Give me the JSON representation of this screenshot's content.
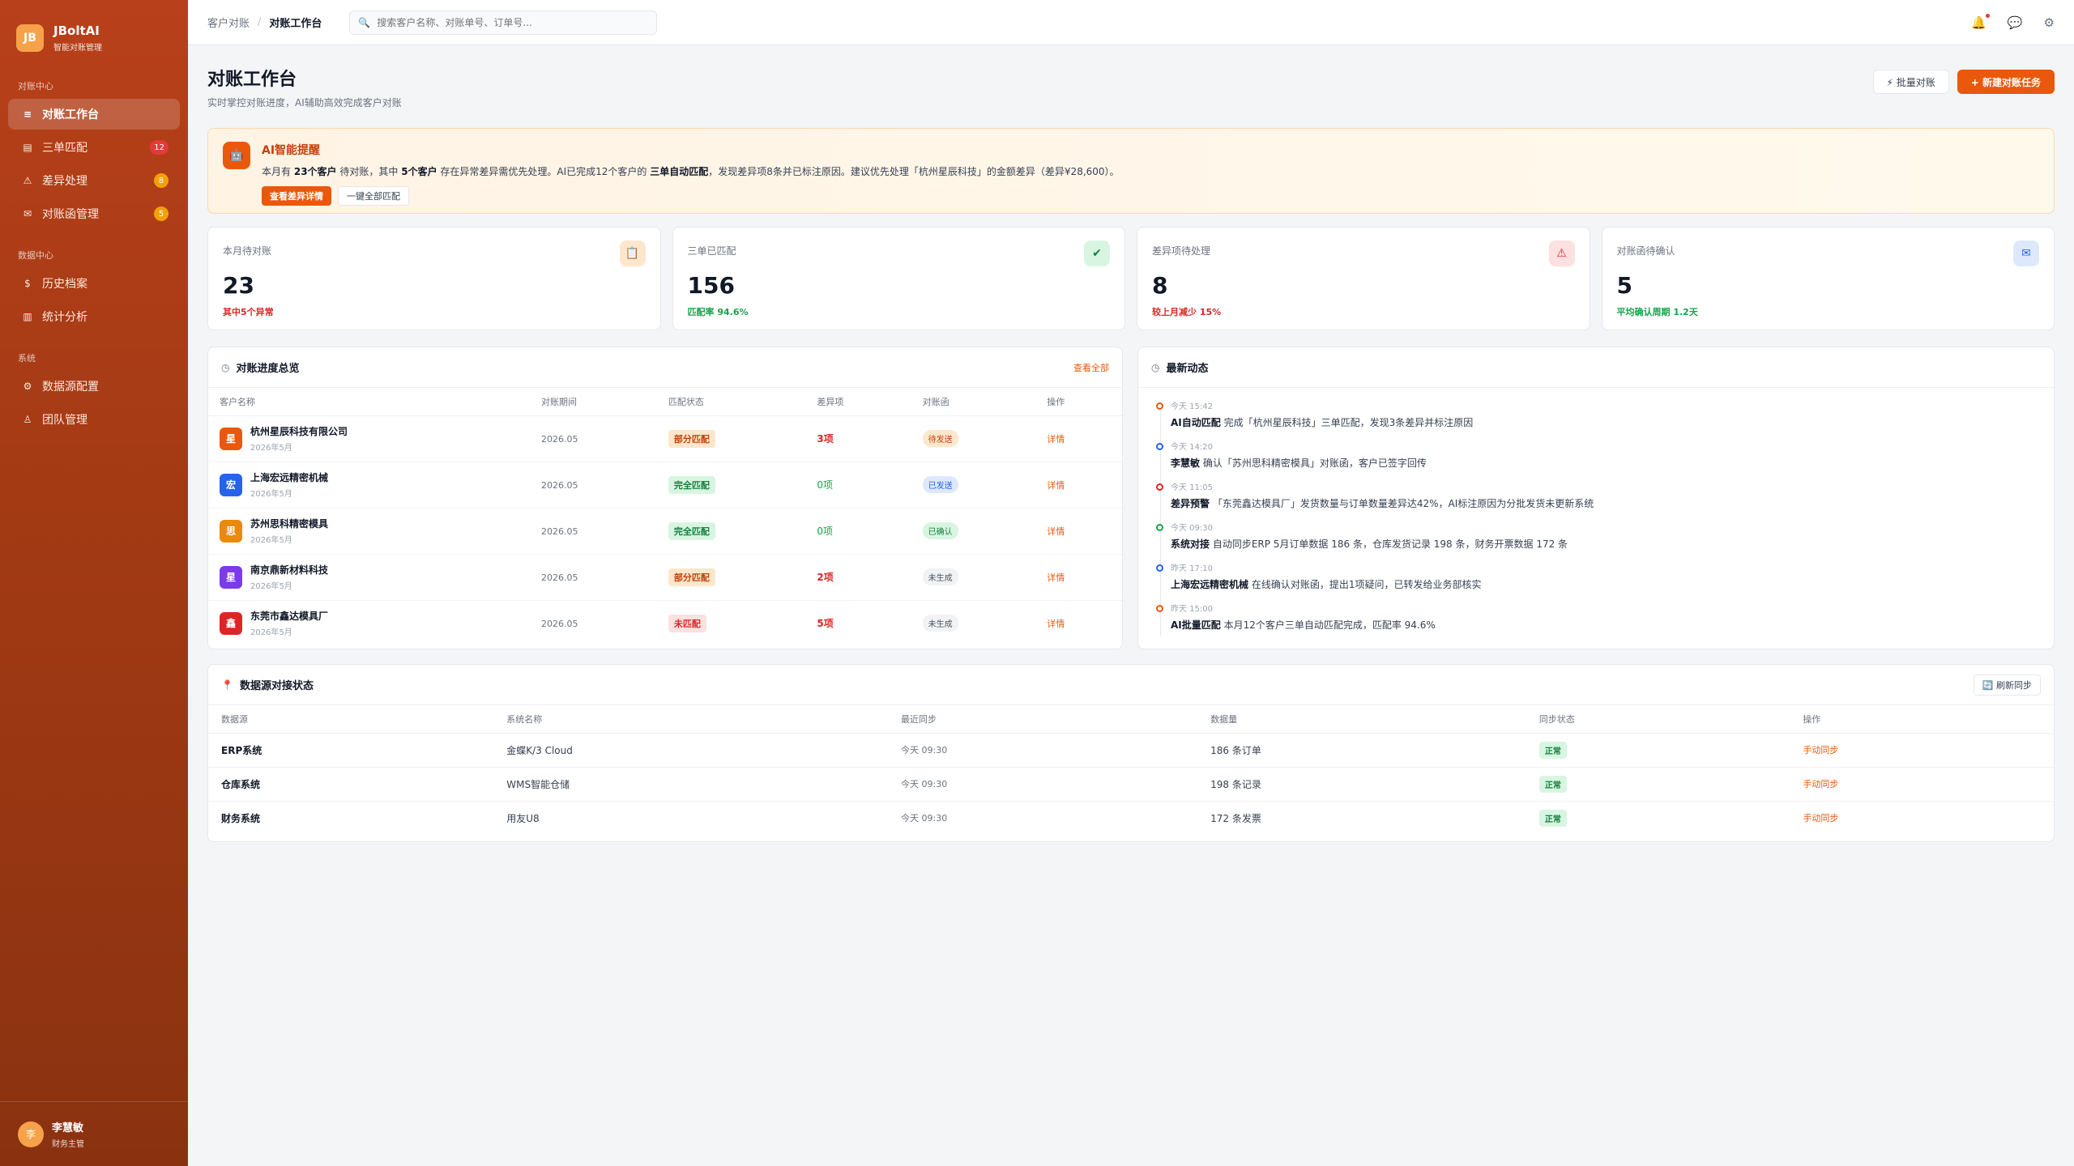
{
  "brand": {
    "logo": "JB",
    "name": "JBoltAI",
    "sub": "智能对账管理"
  },
  "sidebar": {
    "sections": [
      {
        "title": "对账中心",
        "items": [
          {
            "label": "对账工作台",
            "icon": "≡",
            "badge": ""
          },
          {
            "label": "三单匹配",
            "icon": "▤",
            "badge": "12"
          },
          {
            "label": "差异处理",
            "icon": "⚠",
            "badge": "8"
          },
          {
            "label": "对账函管理",
            "icon": "✉",
            "badge": "5"
          }
        ]
      },
      {
        "title": "数据中心",
        "items": [
          {
            "label": "历史档案",
            "icon": "$"
          },
          {
            "label": "统计分析",
            "icon": "▥"
          }
        ]
      },
      {
        "title": "系统",
        "items": [
          {
            "label": "数据源配置",
            "icon": "⚙"
          },
          {
            "label": "团队管理",
            "icon": "♙"
          }
        ]
      }
    ]
  },
  "user": {
    "avatar": "李",
    "name": "李慧敏",
    "role": "财务主管"
  },
  "topbar": {
    "crumb_parent": "客户对账",
    "crumb_sep": "/",
    "crumb_current": "对账工作台",
    "search_placeholder": "搜索客户名称、对账单号、订单号..."
  },
  "page": {
    "title": "对账工作台",
    "subtitle": "实时掌控对账进度，AI辅助高效完成客户对账",
    "btn_batch": "⚡ 批量对账",
    "btn_new": "+ 新建对账任务"
  },
  "ai": {
    "icon": "🤖",
    "title": "AI智能提醒",
    "t1": "本月有",
    "t2": "23个客户",
    "t3": "待对账，其中",
    "t4": "5个客户",
    "t5": "存在异常差异需优先处理。AI已完成12个客户的",
    "t6": "三单自动匹配",
    "t7": "，发现差异项8条并已标注原因。建议优先处理「杭州星辰科技」的金额差异（差异¥28,600）。",
    "btn_view": "查看差异详情",
    "btn_match": "一键全部匹配"
  },
  "stats": [
    {
      "label": "本月待对账",
      "value": "23",
      "note": "其中5个异常",
      "tone": "red",
      "icon": "📋"
    },
    {
      "label": "三单已匹配",
      "value": "156",
      "note": "匹配率 94.6%",
      "tone": "green",
      "icon": "✔"
    },
    {
      "label": "差异项待处理",
      "value": "8",
      "note": "较上月减少 15%",
      "tone": "red",
      "icon": "⚠"
    },
    {
      "label": "对账函待确认",
      "value": "5",
      "note": "平均确认周期 1.2天",
      "tone": "green",
      "icon": "✉"
    }
  ],
  "progress": {
    "title": "对账进度总览",
    "link": "查看全部",
    "headers": [
      "客户名称",
      "对账期间",
      "匹配状态",
      "差异项",
      "对账函",
      "操作"
    ],
    "rows": [
      {
        "av": "星",
        "color": "#ea580c",
        "name": "杭州星辰科技有限公司",
        "sub": "2026年5月",
        "period": "2026.05",
        "status": "部分匹配",
        "st": "partial",
        "diff": "3项",
        "dt": "red",
        "letter": "待发送",
        "lt": "pend",
        "op": "详情"
      },
      {
        "av": "宏",
        "color": "#2563eb",
        "name": "上海宏远精密机械",
        "sub": "2026年5月",
        "period": "2026.05",
        "status": "完全匹配",
        "st": "full",
        "diff": "0项",
        "dt": "green",
        "letter": "已发送",
        "lt": "sent",
        "op": "详情"
      },
      {
        "av": "思",
        "color": "#ea8a0c",
        "name": "苏州思科精密模具",
        "sub": "2026年5月",
        "period": "2026.05",
        "status": "完全匹配",
        "st": "full",
        "diff": "0项",
        "dt": "green",
        "letter": "已确认",
        "lt": "ok",
        "op": "详情"
      },
      {
        "av": "星",
        "color": "#7c3aed",
        "name": "南京鼎新材料科技",
        "sub": "2026年5月",
        "period": "2026.05",
        "status": "部分匹配",
        "st": "partial",
        "diff": "2项",
        "dt": "red",
        "letter": "未生成",
        "lt": "none",
        "op": "详情"
      },
      {
        "av": "鑫",
        "color": "#dc2626",
        "name": "东莞市鑫达模具厂",
        "sub": "2026年5月",
        "period": "2026.05",
        "status": "未匹配",
        "st": "none",
        "diff": "5项",
        "dt": "red",
        "letter": "未生成",
        "lt": "none",
        "op": "详情"
      }
    ]
  },
  "activity": {
    "title": "最新动态",
    "items": [
      {
        "time": "今天 15:42",
        "who": "AI自动匹配",
        "text": " 完成「杭州星辰科技」三单匹配，发现3条差异并标注原因",
        "color": "#ea580c"
      },
      {
        "time": "今天 14:20",
        "who": "李慧敏",
        "text": " 确认「苏州思科精密模具」对账函，客户已签字回传",
        "color": "#2563eb"
      },
      {
        "time": "今天 11:05",
        "who": "差异预警",
        "text": " 「东莞鑫达模具厂」发货数量与订单数量差异达42%，AI标注原因为分批发货未更新系统",
        "color": "#dc2626"
      },
      {
        "time": "今天 09:30",
        "who": "系统对接",
        "text": " 自动同步ERP 5月订单数据 186 条，仓库发货记录 198 条，财务开票数据 172 条",
        "color": "#16a34a"
      },
      {
        "time": "昨天 17:10",
        "who": "上海宏远精密机械",
        "text": " 在线确认对账函，提出1项疑问，已转发给业务部核实",
        "color": "#2563eb"
      },
      {
        "time": "昨天 15:00",
        "who": "AI批量匹配",
        "text": " 本月12个客户三单自动匹配完成，匹配率 94.6%",
        "color": "#ea580c"
      }
    ]
  },
  "datasource": {
    "title": "数据源对接状态",
    "refresh": "🔄 刷新同步",
    "headers": [
      "数据源",
      "系统名称",
      "最近同步",
      "数据量",
      "同步状态",
      "操作"
    ],
    "rows": [
      {
        "src": "ERP系统",
        "sys": "金蝶K/3 Cloud",
        "time": "今天 09:30",
        "count": "186 条订单",
        "status": "正常",
        "op": "手动同步"
      },
      {
        "src": "仓库系统",
        "sys": "WMS智能仓储",
        "time": "今天 09:30",
        "count": "198 条记录",
        "status": "正常",
        "op": "手动同步"
      },
      {
        "src": "财务系统",
        "sys": "用友U8",
        "time": "今天 09:30",
        "count": "172 条发票",
        "status": "正常",
        "op": "手动同步"
      }
    ]
  }
}
